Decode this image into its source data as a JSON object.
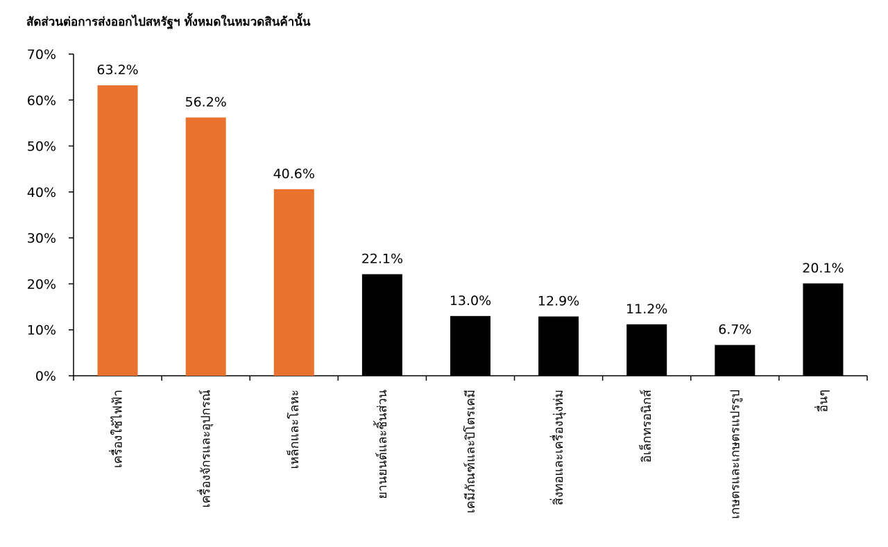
{
  "chart_data": {
    "type": "bar",
    "title": "สัดส่วนต่อการส่งออกไปสหรัฐฯ ทั้งหมดในหมวดสินค้านั้น",
    "xlabel": "",
    "ylabel": "",
    "categories": [
      "เครื่องใช้ไฟฟ้า",
      "เครื่องจักรและอุปกรณ์",
      "เหล็กและโลหะ",
      "ยานยนต์และชิ้นส่วน",
      "เคมีภัณฑ์และปิโตรเคมี",
      "สิ่งทอและเครื่องนุ่งห่ม",
      "อิเล็กทรอนิกส์",
      "เกษตรและเกษตรแปรรูป",
      "อื่นๆ"
    ],
    "values": [
      63.2,
      56.2,
      40.6,
      22.1,
      13.0,
      12.9,
      11.2,
      6.7,
      20.1
    ],
    "data_labels": [
      "63.2%",
      "56.2%",
      "40.6%",
      "22.1%",
      "13.0%",
      "12.9%",
      "11.2%",
      "6.7%",
      "20.1%"
    ],
    "bar_colors": [
      "#E8722E",
      "#E8722E",
      "#E8722E",
      "#000000",
      "#000000",
      "#000000",
      "#000000",
      "#000000",
      "#000000"
    ],
    "ylim": [
      0,
      70
    ],
    "yticks": [
      "0%",
      "10%",
      "20%",
      "30%",
      "40%",
      "50%",
      "60%",
      "70%"
    ],
    "grid": false,
    "legend": "none"
  }
}
